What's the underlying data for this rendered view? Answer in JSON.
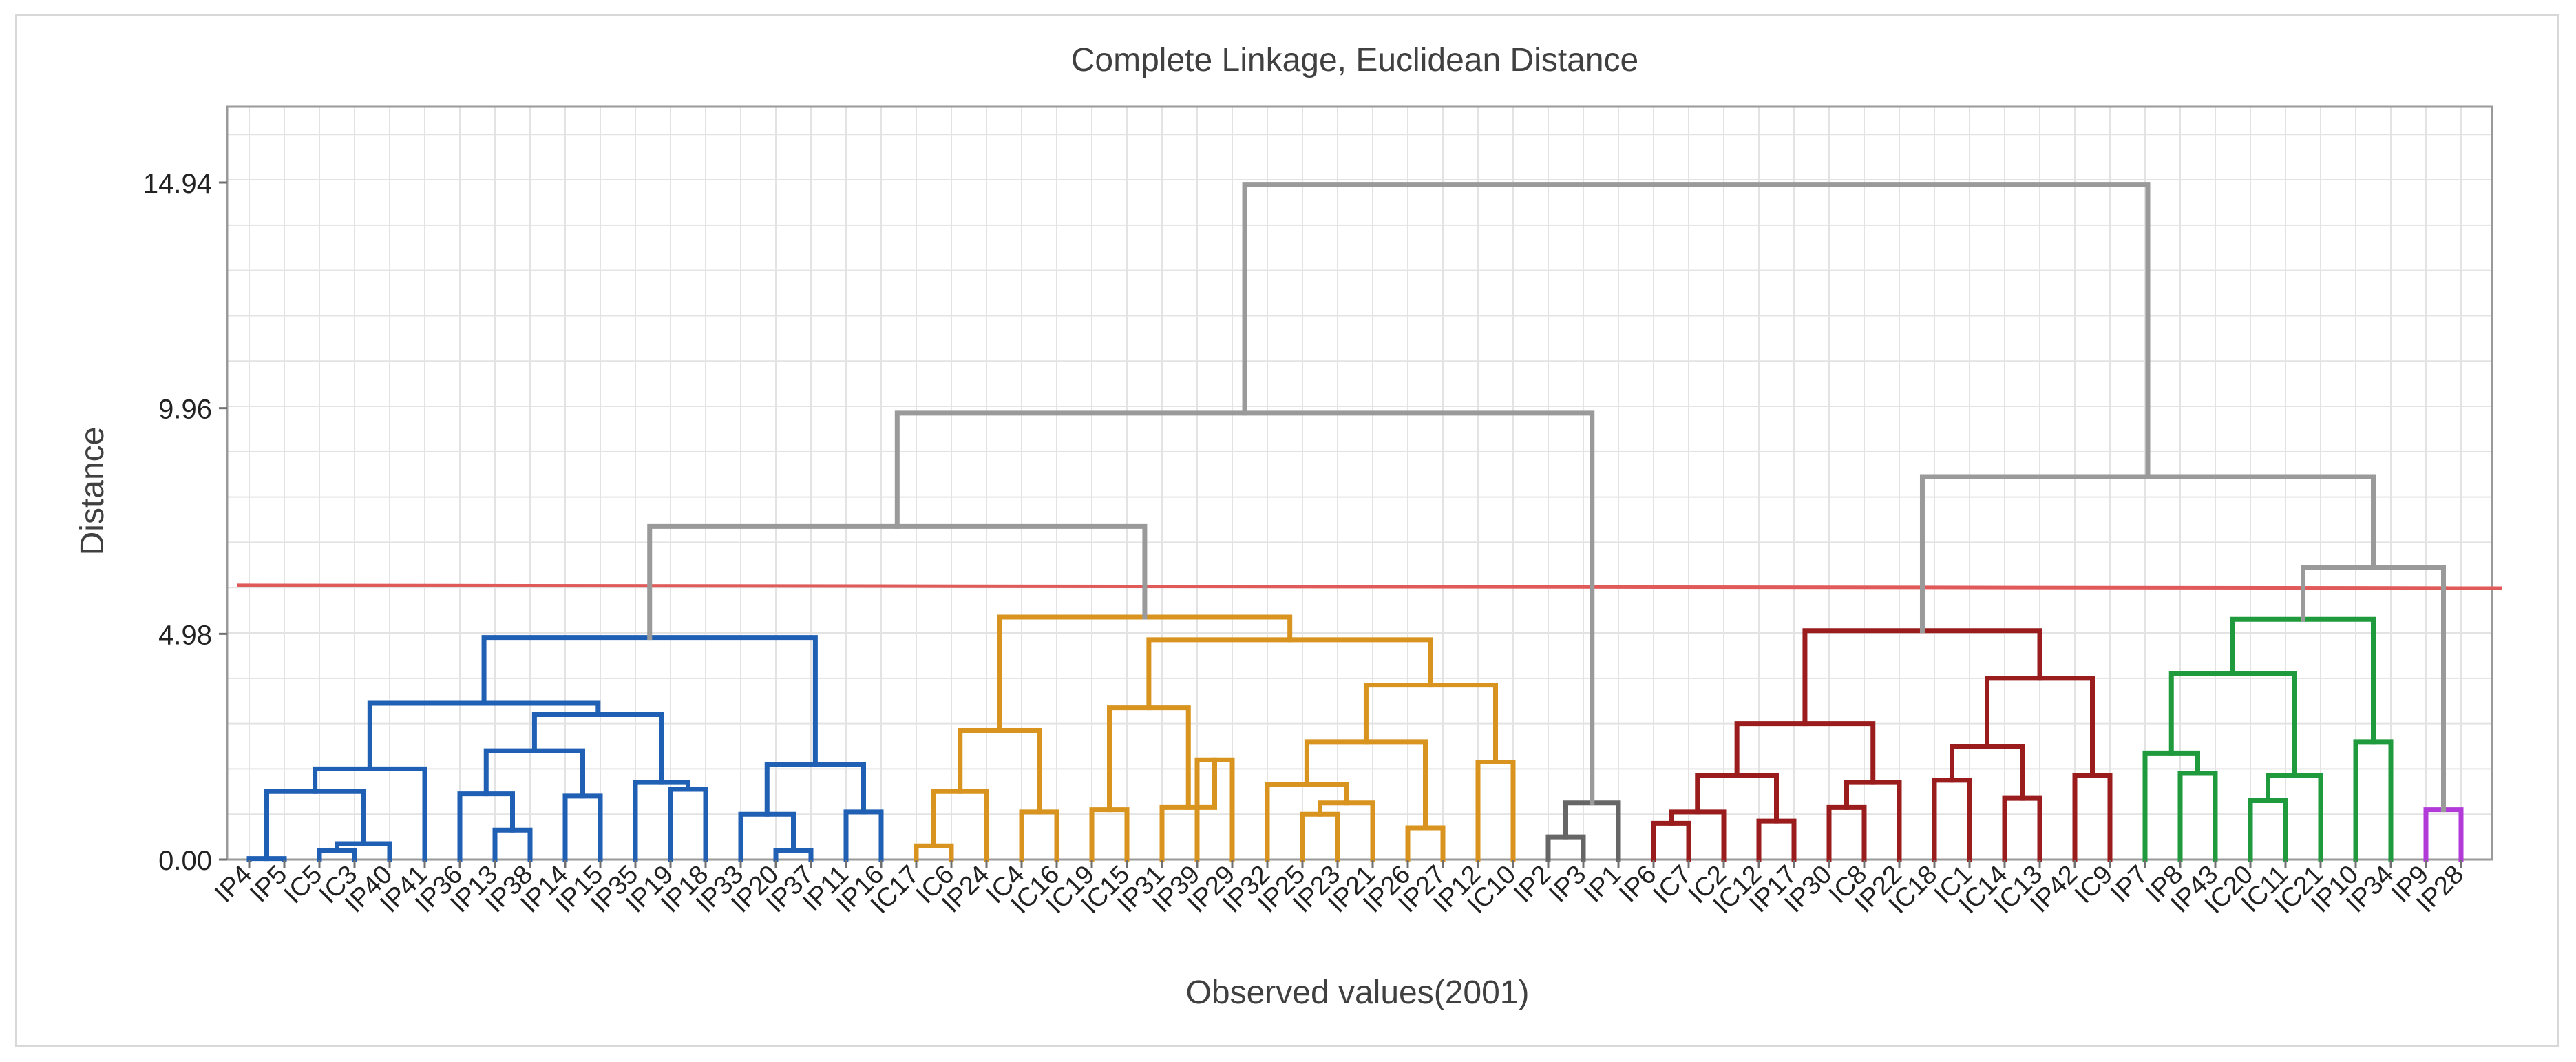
{
  "chart_data": {
    "type": "dendrogram",
    "title": "Complete Linkage, Euclidean Distance",
    "xlabel": "Observed values(2001)",
    "ylabel": "Distance",
    "ylim": [
      0,
      16.5
    ],
    "yticks": [
      0.0,
      4.98,
      9.96,
      14.94
    ],
    "ytick_labels": [
      "0.00",
      "4.98",
      "9.96",
      "14.94"
    ],
    "cut_height": 6.05,
    "grid": true,
    "leaves": [
      "IP4",
      "IP5",
      "IC5",
      "IC3",
      "IP40",
      "IP41",
      "IP36",
      "IP13",
      "IP38",
      "IP14",
      "IP15",
      "IP35",
      "IP19",
      "IP18",
      "IP33",
      "IP20",
      "IP37",
      "IP11",
      "IP16",
      "IC17",
      "IC6",
      "IP24",
      "IC4",
      "IC16",
      "IC19",
      "IC15",
      "IP31",
      "IP39",
      "IP29",
      "IP32",
      "IP25",
      "IP23",
      "IP21",
      "IP26",
      "IP27",
      "IP12",
      "IC10",
      "IP2",
      "IP3",
      "IP1",
      "IP6",
      "IC7",
      "IC2",
      "IC12",
      "IP17",
      "IP30",
      "IC8",
      "IP22",
      "IC18",
      "IC1",
      "IC14",
      "IC13",
      "IP42",
      "IC9",
      "IP7",
      "IP8",
      "IP43",
      "IC20",
      "IC11",
      "IC21",
      "IP10",
      "IP34",
      "IP9",
      "IP28"
    ],
    "colors": {
      "blue": "#1f5fb4",
      "orange": "#d8941e",
      "darkgray": "#666666",
      "red": "#9a1c1c",
      "green": "#1f9a3c",
      "purple": "#b23ad8",
      "upper": "#9a9a9a",
      "cut_line": "#e05a5a"
    },
    "merges": [
      {
        "a": "L:IP4",
        "b": "L:IP5",
        "h": 0.02,
        "c": "blue"
      },
      {
        "a": "L:IC5",
        "b": "L:IC3",
        "h": 0.2,
        "c": "blue"
      },
      {
        "a": "M:1",
        "b": "L:IP40",
        "h": 0.35,
        "c": "blue"
      },
      {
        "a": "M:0",
        "b": "M:2",
        "h": 1.5,
        "c": "blue"
      },
      {
        "a": "M:3",
        "b": "L:IP41",
        "h": 2.0,
        "c": "blue"
      },
      {
        "a": "L:IP13",
        "b": "L:IP38",
        "h": 0.65,
        "c": "blue"
      },
      {
        "a": "L:IP36",
        "b": "M:5",
        "h": 1.45,
        "c": "blue"
      },
      {
        "a": "L:IP14",
        "b": "L:IP15",
        "h": 1.4,
        "c": "blue"
      },
      {
        "a": "M:6",
        "b": "M:7",
        "h": 2.4,
        "c": "blue"
      },
      {
        "a": "L:IP19",
        "b": "L:IP18",
        "h": 1.55,
        "c": "blue"
      },
      {
        "a": "L:IP35",
        "b": "M:9",
        "h": 1.7,
        "c": "blue"
      },
      {
        "a": "M:8",
        "b": "M:10",
        "h": 3.2,
        "c": "blue"
      },
      {
        "a": "M:4",
        "b": "M:11",
        "h": 3.45,
        "c": "blue"
      },
      {
        "a": "L:IP20",
        "b": "L:IP37",
        "h": 0.2,
        "c": "blue"
      },
      {
        "a": "L:IP33",
        "b": "M:13",
        "h": 1.0,
        "c": "blue"
      },
      {
        "a": "L:IP11",
        "b": "L:IP16",
        "h": 1.05,
        "c": "blue"
      },
      {
        "a": "M:14",
        "b": "M:15",
        "h": 2.1,
        "c": "blue"
      },
      {
        "a": "M:12",
        "b": "M:16",
        "h": 4.9,
        "c": "blue"
      },
      {
        "a": "L:IC17",
        "b": "L:IC6",
        "h": 0.3,
        "c": "orange"
      },
      {
        "a": "M:18",
        "b": "L:IP24",
        "h": 1.5,
        "c": "orange"
      },
      {
        "a": "L:IC4",
        "b": "L:IC16",
        "h": 1.05,
        "c": "orange"
      },
      {
        "a": "M:19",
        "b": "M:20",
        "h": 2.85,
        "c": "orange"
      },
      {
        "a": "L:IC19",
        "b": "L:IC15",
        "h": 1.1,
        "c": "orange"
      },
      {
        "a": "L:IP39",
        "b": "L:IP29",
        "h": 2.2,
        "c": "orange"
      },
      {
        "a": "L:IP31",
        "b": "M:23",
        "h": 1.15,
        "c": "orange"
      },
      {
        "a": "M:22",
        "b": "M:24",
        "h": 3.35,
        "c": "orange"
      },
      {
        "a": "L:IP25",
        "b": "L:IP23",
        "h": 1.0,
        "c": "orange"
      },
      {
        "a": "M:26",
        "b": "L:IP21",
        "h": 1.25,
        "c": "orange"
      },
      {
        "a": "L:IP32",
        "b": "M:27",
        "h": 1.65,
        "c": "orange"
      },
      {
        "a": "L:IP26",
        "b": "L:IP27",
        "h": 0.7,
        "c": "orange"
      },
      {
        "a": "M:28",
        "b": "M:29",
        "h": 2.6,
        "c": "orange"
      },
      {
        "a": "L:IP12",
        "b": "L:IC10",
        "h": 2.15,
        "c": "orange"
      },
      {
        "a": "M:30",
        "b": "M:31",
        "h": 3.85,
        "c": "orange"
      },
      {
        "a": "M:25",
        "b": "M:32",
        "h": 4.85,
        "c": "orange"
      },
      {
        "a": "M:21",
        "b": "M:33",
        "h": 5.35,
        "c": "orange"
      },
      {
        "a": "M:17",
        "b": "M:34",
        "h": 7.35,
        "c": "upper"
      },
      {
        "a": "L:IP2",
        "b": "L:IP3",
        "h": 0.5,
        "c": "darkgray"
      },
      {
        "a": "M:36",
        "b": "L:IP1",
        "h": 1.25,
        "c": "darkgray"
      },
      {
        "a": "M:35",
        "b": "M:37",
        "h": 9.85,
        "c": "upper"
      },
      {
        "a": "L:IP6",
        "b": "L:IC7",
        "h": 0.8,
        "c": "red"
      },
      {
        "a": "M:39",
        "b": "L:IC2",
        "h": 1.05,
        "c": "red"
      },
      {
        "a": "L:IC12",
        "b": "L:IP17",
        "h": 0.85,
        "c": "red"
      },
      {
        "a": "M:40",
        "b": "M:41",
        "h": 1.85,
        "c": "red"
      },
      {
        "a": "L:IP30",
        "b": "L:IC8",
        "h": 1.15,
        "c": "red"
      },
      {
        "a": "M:43",
        "b": "L:IP22",
        "h": 1.7,
        "c": "red"
      },
      {
        "a": "M:42",
        "b": "M:44",
        "h": 3.0,
        "c": "red"
      },
      {
        "a": "L:IC18",
        "b": "L:IC1",
        "h": 1.75,
        "c": "red"
      },
      {
        "a": "L:IC14",
        "b": "L:IC13",
        "h": 1.35,
        "c": "red"
      },
      {
        "a": "M:46",
        "b": "M:47",
        "h": 2.5,
        "c": "red"
      },
      {
        "a": "L:IP42",
        "b": "L:IC9",
        "h": 1.85,
        "c": "red"
      },
      {
        "a": "M:48",
        "b": "M:49",
        "h": 4.0,
        "c": "red"
      },
      {
        "a": "M:45",
        "b": "M:50",
        "h": 5.05,
        "c": "red"
      },
      {
        "a": "L:IP8",
        "b": "L:IP43",
        "h": 1.9,
        "c": "green"
      },
      {
        "a": "L:IP7",
        "b": "M:52",
        "h": 2.35,
        "c": "green"
      },
      {
        "a": "L:IC20",
        "b": "L:IC11",
        "h": 1.3,
        "c": "green"
      },
      {
        "a": "M:54",
        "b": "L:IC21",
        "h": 1.85,
        "c": "green"
      },
      {
        "a": "M:53",
        "b": "M:55",
        "h": 4.1,
        "c": "green"
      },
      {
        "a": "L:IP10",
        "b": "L:IP34",
        "h": 2.6,
        "c": "green"
      },
      {
        "a": "M:56",
        "b": "M:57",
        "h": 5.3,
        "c": "green"
      },
      {
        "a": "L:IP9",
        "b": "L:IP28",
        "h": 1.1,
        "c": "purple"
      },
      {
        "a": "M:58",
        "b": "M:59",
        "h": 6.45,
        "c": "upper"
      },
      {
        "a": "M:51",
        "b": "M:60",
        "h": 8.45,
        "c": "upper"
      },
      {
        "a": "M:38",
        "b": "M:61",
        "h": 14.9,
        "c": "upper"
      }
    ]
  }
}
